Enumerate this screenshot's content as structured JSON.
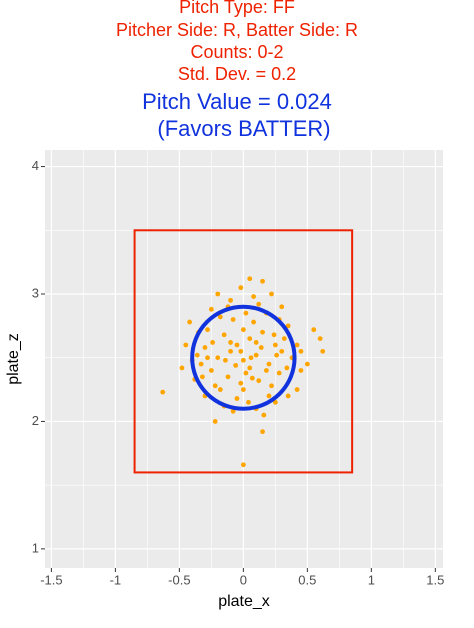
{
  "chart_data": {
    "type": "scatter",
    "title": [
      "Pitch Type: FF",
      "Pitcher Side: R, Batter Side: R",
      "Counts:  0-2",
      "Std. Dev. = 0.2"
    ],
    "title_color": "#ee2200",
    "subtitle": [
      "Pitch Value =  0.024",
      "(Favors BATTER)"
    ],
    "subtitle_color": "#1133dd",
    "xlabel": "plate_x",
    "ylabel": "plate_z",
    "xlim": [
      -1.55,
      1.56
    ],
    "ylim": [
      0.85,
      4.13
    ],
    "xticks": [
      -1.5,
      -1.0,
      -0.5,
      0.0,
      0.5,
      1.0,
      1.5
    ],
    "yticks": [
      1,
      2,
      3,
      4
    ],
    "xminor": [
      -1.25,
      -0.75,
      -0.25,
      0.25,
      0.75,
      1.25
    ],
    "yminor": [
      1.5,
      2.5,
      3.5
    ],
    "grid": true,
    "series": [
      {
        "color": "#ffa500",
        "x": [
          -0.63,
          0.6,
          0.62,
          0,
          0.15,
          -0.22,
          0.15,
          0.05,
          -0.02,
          -0.2,
          -0.42,
          0.55,
          0.42,
          -0.38,
          0.22,
          -0.1,
          0.08,
          0.3,
          -0.25,
          0.42,
          -0.45,
          -0.33,
          0.45,
          0.35,
          -0.3,
          -0.15,
          0.1,
          0.25,
          -0.05,
          0,
          -0.2,
          -0.1,
          0,
          0.1,
          0.2,
          -0.05,
          0.05,
          0.15,
          -0.15,
          0.25,
          -0.25,
          -0.12,
          0.02,
          0.12,
          0.28,
          -0.3,
          0.3,
          -0.08,
          0.08,
          0.18,
          -0.18,
          0.35,
          -0.35,
          0,
          -0.02,
          0.22,
          -0.22,
          0.05,
          -0.06,
          0.14,
          -0.14,
          0.18,
          -0.28,
          0.38,
          -0.4,
          0.32,
          -0.32,
          0.26,
          -0.02,
          0.06,
          -0.1,
          0.1,
          0.02,
          -0.12,
          0.12,
          0.28,
          -0.28,
          0.45,
          -0.48,
          0.5,
          0.2,
          -0.18,
          0.04,
          0.16,
          -0.08,
          0.24,
          -0.24,
          0.34,
          -0.36,
          0.07
        ],
        "values": [
          2.23,
          2.65,
          2.55,
          1.66,
          1.92,
          2.0,
          3.1,
          3.12,
          3.05,
          3.0,
          2.78,
          2.72,
          2.25,
          2.33,
          3.0,
          2.95,
          2.98,
          2.9,
          2.88,
          2.6,
          2.6,
          2.45,
          2.4,
          2.2,
          2.2,
          2.12,
          2.1,
          2.15,
          2.18,
          2.25,
          2.5,
          2.55,
          2.48,
          2.52,
          2.45,
          2.6,
          2.65,
          2.7,
          2.68,
          2.6,
          2.4,
          2.35,
          2.38,
          2.32,
          2.38,
          2.58,
          2.55,
          2.8,
          2.78,
          2.85,
          2.82,
          2.75,
          2.7,
          2.72,
          2.3,
          2.28,
          2.28,
          2.42,
          2.44,
          2.58,
          2.48,
          2.4,
          2.5,
          2.5,
          2.48,
          2.65,
          2.35,
          2.52,
          2.55,
          2.5,
          2.62,
          2.62,
          2.85,
          2.9,
          2.92,
          2.8,
          2.72,
          2.55,
          2.42,
          2.45,
          2.2,
          2.25,
          2.15,
          2.05,
          2.08,
          2.68,
          2.62,
          2.42,
          2.52,
          2.34
        ]
      }
    ],
    "strike_zone": {
      "x": [
        -0.85,
        0.85
      ],
      "z": [
        1.6,
        3.5
      ],
      "color": "#ee2200"
    },
    "circle": {
      "x": 0,
      "z": 2.5,
      "r": 0.4,
      "color": "#1133dd"
    }
  }
}
